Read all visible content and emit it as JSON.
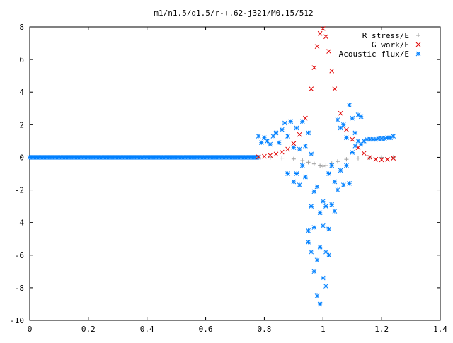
{
  "chart_data": {
    "type": "scatter",
    "title": "m1/n1.5/q1.5/r-+.62-j321/M0.15/512",
    "xlabel": "",
    "ylabel": "",
    "xlim": [
      0,
      1.4
    ],
    "ylim": [
      -10,
      8
    ],
    "xticks": [
      "0",
      "0.2",
      "0.4",
      "0.6",
      "0.8",
      "1",
      "1.2",
      "1.4"
    ],
    "yticks": [
      "-10",
      "-8",
      "-6",
      "-4",
      "-2",
      "0",
      "2",
      "4",
      "6",
      "8"
    ],
    "grid": false,
    "legend_position": "top-right",
    "series": [
      {
        "name": "R stress/E",
        "marker": "+",
        "color": "#a0a0a0",
        "points": [
          [
            0.78,
            0.0
          ],
          [
            0.82,
            -0.02
          ],
          [
            0.86,
            -0.05
          ],
          [
            0.9,
            -0.1
          ],
          [
            0.93,
            -0.2
          ],
          [
            0.95,
            -0.3
          ],
          [
            0.97,
            -0.4
          ],
          [
            0.99,
            -0.52
          ],
          [
            1.0,
            -0.55
          ],
          [
            1.01,
            -0.5
          ],
          [
            1.03,
            -0.38
          ],
          [
            1.05,
            -0.25
          ],
          [
            1.08,
            -0.12
          ],
          [
            1.12,
            -0.05
          ],
          [
            1.16,
            -0.02
          ],
          [
            1.2,
            0.0
          ],
          [
            1.24,
            0.0
          ]
        ]
      },
      {
        "name": "G work/E",
        "marker": "x",
        "color": "#e00000",
        "points": [
          [
            0.78,
            0.03
          ],
          [
            0.8,
            0.06
          ],
          [
            0.82,
            0.12
          ],
          [
            0.84,
            0.2
          ],
          [
            0.86,
            0.32
          ],
          [
            0.88,
            0.5
          ],
          [
            0.9,
            0.85
          ],
          [
            0.92,
            1.4
          ],
          [
            0.94,
            2.4
          ],
          [
            0.96,
            4.2
          ],
          [
            0.97,
            5.5
          ],
          [
            0.98,
            6.8
          ],
          [
            0.99,
            7.6
          ],
          [
            1.0,
            7.9
          ],
          [
            1.01,
            7.4
          ],
          [
            1.02,
            6.5
          ],
          [
            1.03,
            5.3
          ],
          [
            1.04,
            4.2
          ],
          [
            1.06,
            2.7
          ],
          [
            1.08,
            1.7
          ],
          [
            1.1,
            1.1
          ],
          [
            1.12,
            0.6
          ],
          [
            1.14,
            0.25
          ],
          [
            1.16,
            0.0
          ],
          [
            1.18,
            -0.12
          ],
          [
            1.2,
            -0.15
          ],
          [
            1.22,
            -0.12
          ],
          [
            1.24,
            -0.05
          ]
        ]
      },
      {
        "name": "Acoustic flux/E",
        "marker": "*",
        "color": "#0080ff",
        "baseline_range": [
          0,
          0.78
        ],
        "baseline_value": 0,
        "points": [
          [
            0.78,
            1.3
          ],
          [
            0.79,
            0.9
          ],
          [
            0.8,
            1.2
          ],
          [
            0.81,
            1.0
          ],
          [
            0.82,
            0.8
          ],
          [
            0.83,
            1.3
          ],
          [
            0.84,
            1.5
          ],
          [
            0.85,
            0.9
          ],
          [
            0.86,
            1.7
          ],
          [
            0.87,
            2.1
          ],
          [
            0.88,
            1.3
          ],
          [
            0.88,
            -1.0
          ],
          [
            0.89,
            2.2
          ],
          [
            0.9,
            0.6
          ],
          [
            0.9,
            -1.5
          ],
          [
            0.91,
            1.8
          ],
          [
            0.91,
            -1.0
          ],
          [
            0.92,
            0.5
          ],
          [
            0.92,
            -1.7
          ],
          [
            0.93,
            2.2
          ],
          [
            0.93,
            -0.5
          ],
          [
            0.94,
            0.7
          ],
          [
            0.94,
            -1.2
          ],
          [
            0.95,
            1.5
          ],
          [
            0.95,
            -4.5
          ],
          [
            0.95,
            -5.2
          ],
          [
            0.96,
            0.2
          ],
          [
            0.96,
            -3.0
          ],
          [
            0.96,
            -5.8
          ],
          [
            0.97,
            -2.1
          ],
          [
            0.97,
            -4.3
          ],
          [
            0.97,
            -7.0
          ],
          [
            0.98,
            -1.8
          ],
          [
            0.98,
            -6.3
          ],
          [
            0.98,
            -8.5
          ],
          [
            0.99,
            -3.4
          ],
          [
            0.99,
            -5.5
          ],
          [
            0.99,
            -9.0
          ],
          [
            1.0,
            -2.7
          ],
          [
            1.0,
            -4.2
          ],
          [
            1.0,
            -7.4
          ],
          [
            1.01,
            -3.0
          ],
          [
            1.01,
            -5.8
          ],
          [
            1.01,
            -7.9
          ],
          [
            1.02,
            -1.0
          ],
          [
            1.02,
            -4.4
          ],
          [
            1.02,
            -6.0
          ],
          [
            1.03,
            -0.5
          ],
          [
            1.03,
            -2.9
          ],
          [
            1.04,
            -1.5
          ],
          [
            1.04,
            -3.3
          ],
          [
            1.05,
            2.3
          ],
          [
            1.05,
            -2.0
          ],
          [
            1.06,
            1.8
          ],
          [
            1.06,
            -0.8
          ],
          [
            1.07,
            -1.7
          ],
          [
            1.07,
            2.0
          ],
          [
            1.08,
            1.2
          ],
          [
            1.08,
            -0.5
          ],
          [
            1.09,
            3.2
          ],
          [
            1.09,
            -1.6
          ],
          [
            1.1,
            2.4
          ],
          [
            1.1,
            0.3
          ],
          [
            1.11,
            1.5
          ],
          [
            1.11,
            0.7
          ],
          [
            1.12,
            2.6
          ],
          [
            1.12,
            1.0
          ],
          [
            1.13,
            2.5
          ],
          [
            1.13,
            0.8
          ],
          [
            1.14,
            1.0
          ],
          [
            1.15,
            1.1
          ],
          [
            1.16,
            1.1
          ],
          [
            1.17,
            1.1
          ],
          [
            1.18,
            1.1
          ],
          [
            1.19,
            1.15
          ],
          [
            1.2,
            1.15
          ],
          [
            1.21,
            1.15
          ],
          [
            1.22,
            1.2
          ],
          [
            1.23,
            1.2
          ],
          [
            1.24,
            1.3
          ]
        ]
      }
    ]
  }
}
